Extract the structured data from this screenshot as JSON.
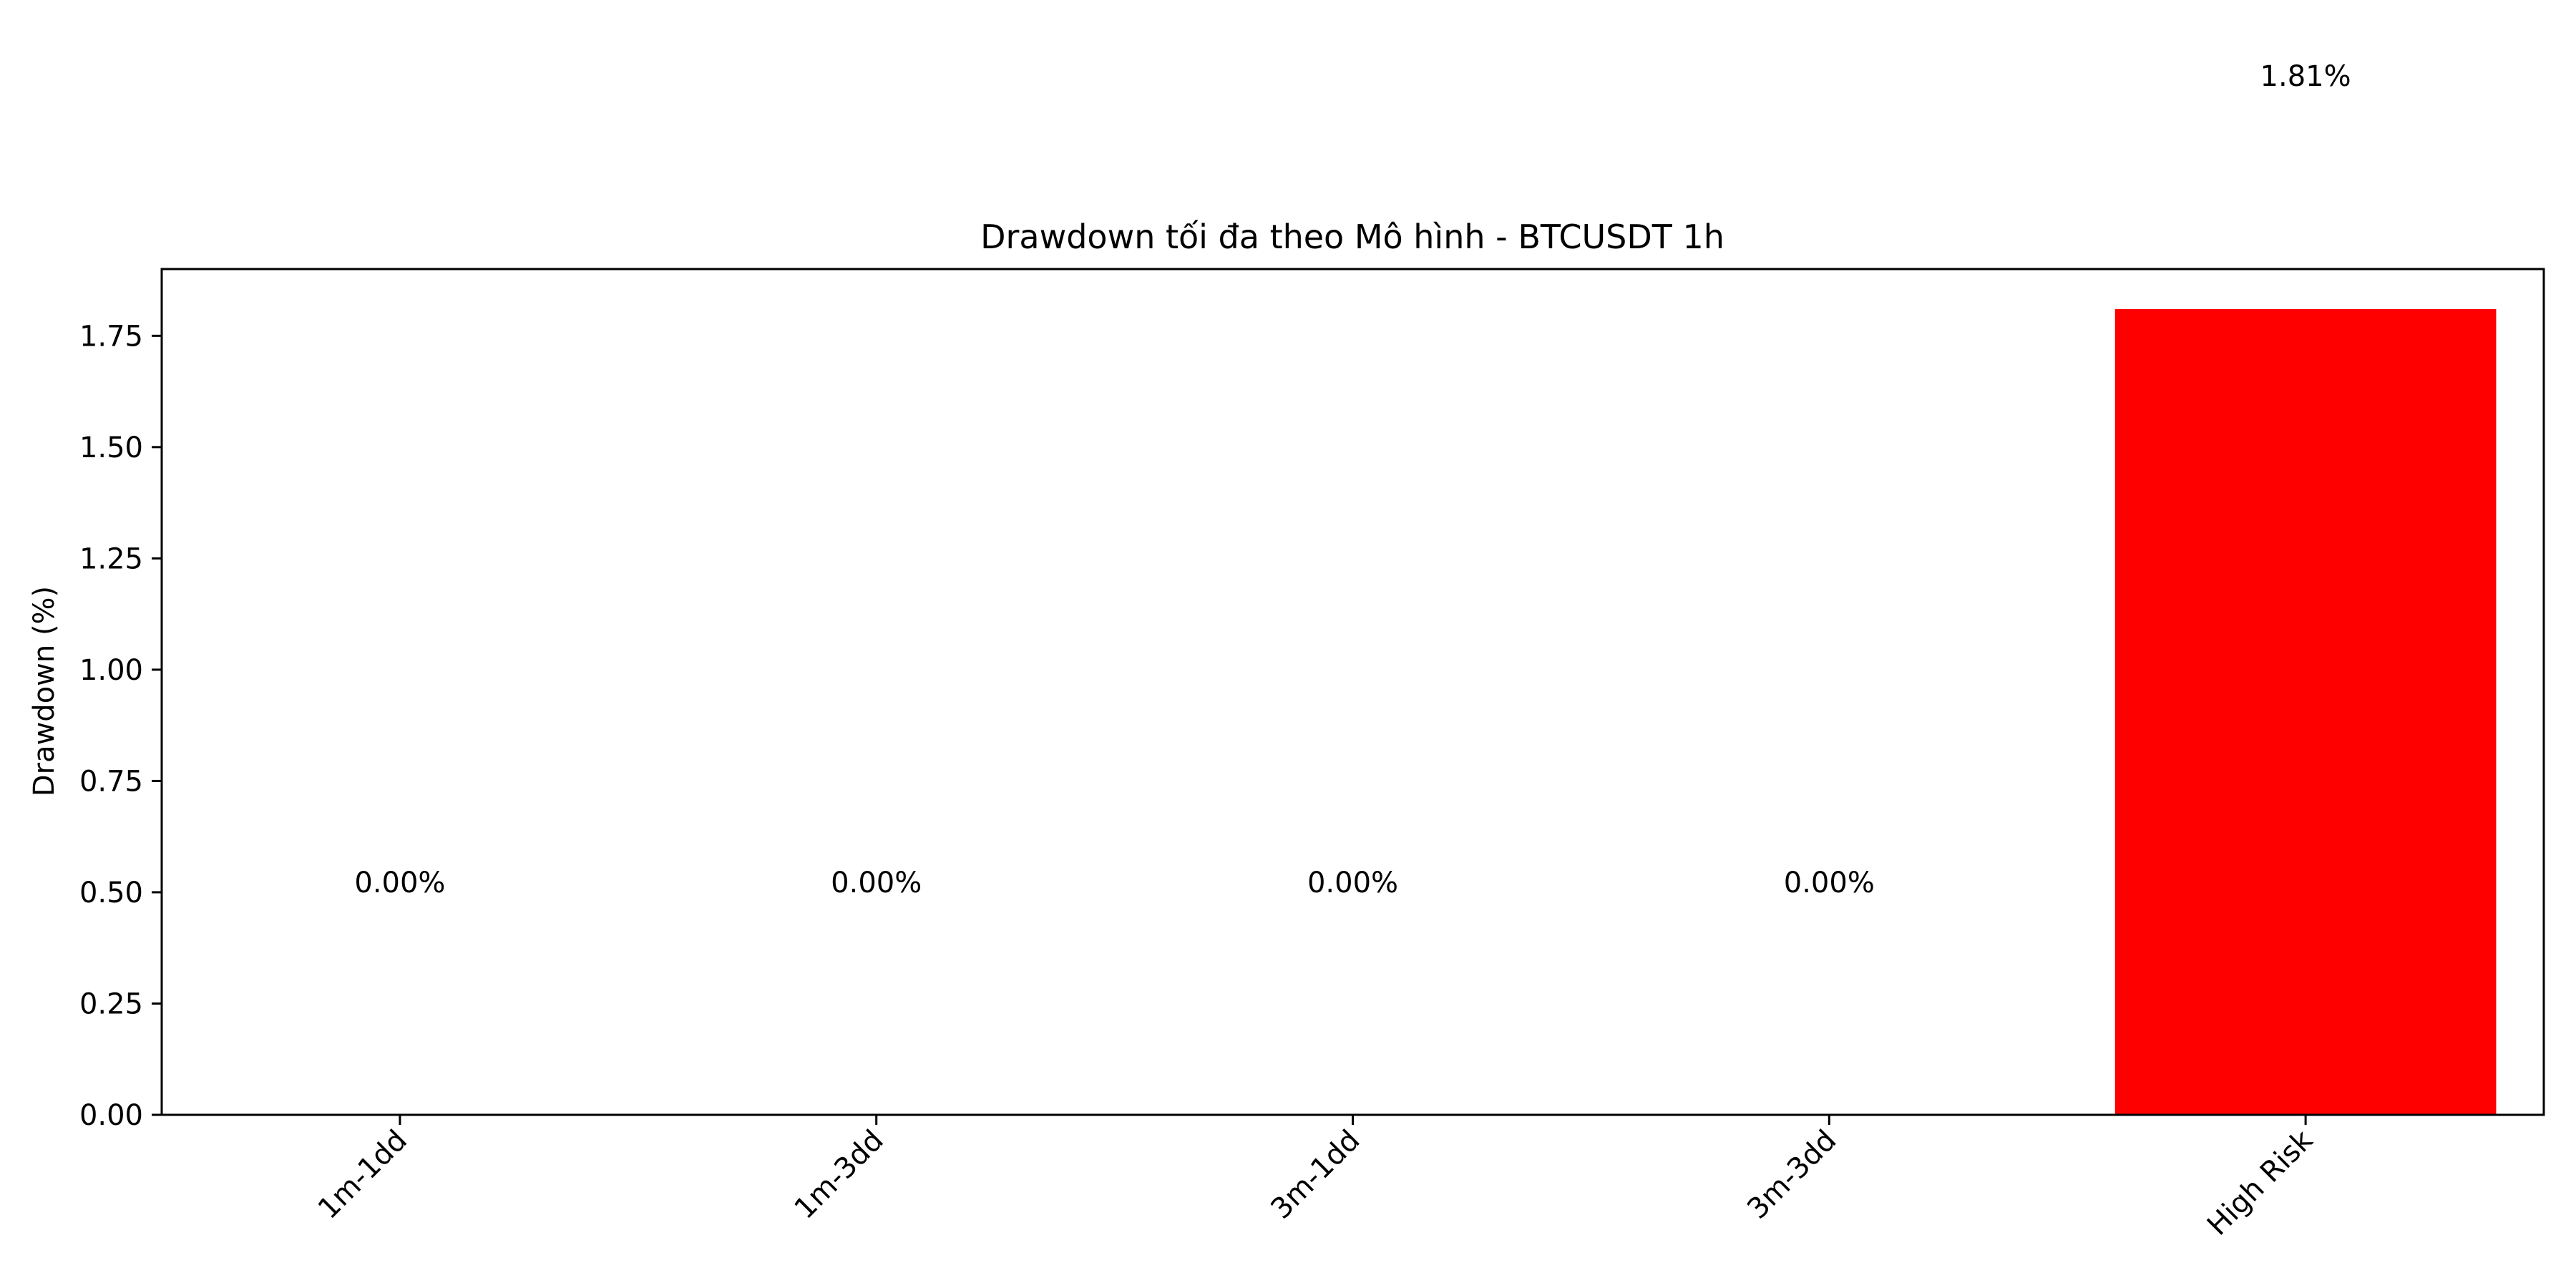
{
  "chart_data": {
    "type": "bar",
    "title": "Drawdown tối đa theo Mô hình - BTCUSDT 1h",
    "xlabel": "",
    "ylabel": "Drawdown (%)",
    "categories": [
      "1m-1dd",
      "1m-3dd",
      "3m-1dd",
      "3m-3dd",
      "High Risk"
    ],
    "values": [
      0.0,
      0.0,
      0.0,
      0.0,
      1.81
    ],
    "data_labels": [
      "0.00%",
      "0.00%",
      "0.00%",
      "0.00%",
      "1.81%"
    ],
    "ylim": [
      0,
      1.9
    ],
    "yticks": [
      0.0,
      0.25,
      0.5,
      0.75,
      1.0,
      1.25,
      1.5,
      1.75
    ],
    "ytick_labels": [
      "0.00",
      "0.25",
      "0.50",
      "0.75",
      "1.00",
      "1.25",
      "1.50",
      "1.75"
    ],
    "bar_color": "#ff0000",
    "grid": false,
    "legend": "none"
  }
}
